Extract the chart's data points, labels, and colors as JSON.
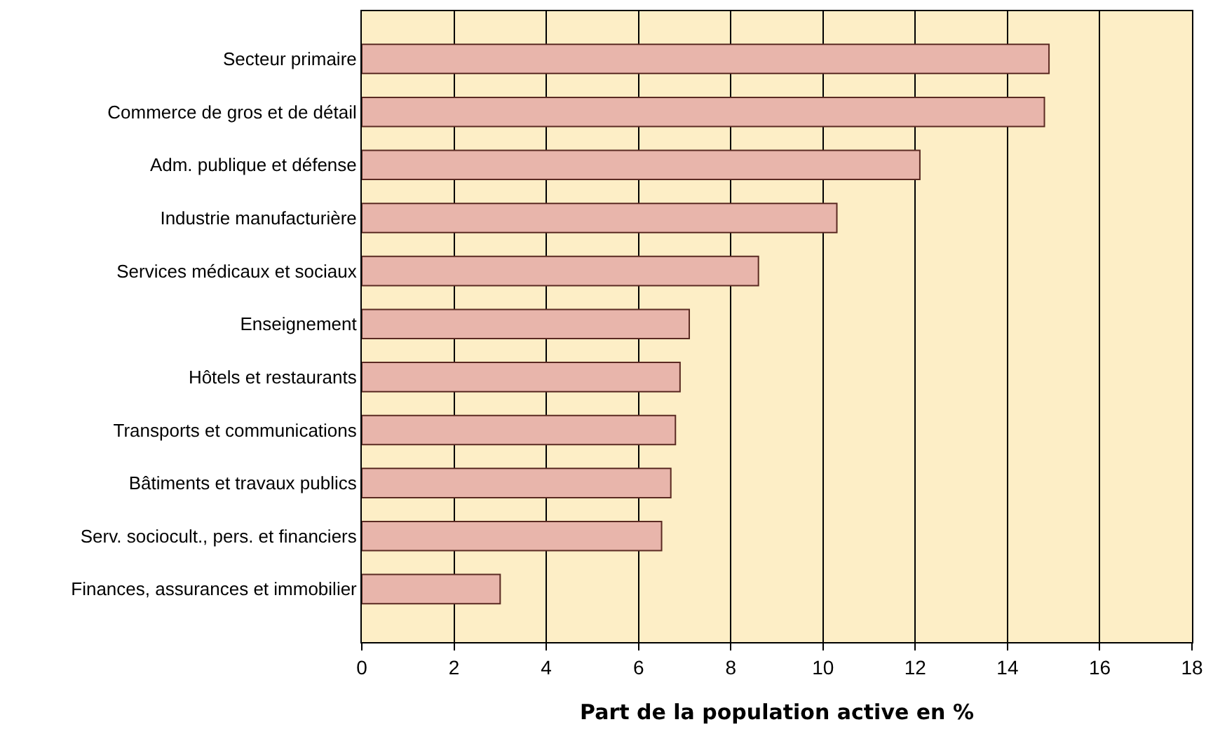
{
  "chart_data": {
    "type": "bar",
    "orientation": "horizontal",
    "xlabel": "Part de la population active en %",
    "categories": [
      "Secteur primaire",
      "Commerce de gros et de détail",
      "Adm. publique et défense",
      "Industrie manufacturière",
      "Services médicaux et sociaux",
      "Enseignement",
      "Hôtels et restaurants",
      "Transports et communications",
      "Bâtiments et travaux publics",
      "Serv. sociocult., pers. et financiers",
      "Finances, assurances et immobilier"
    ],
    "values": [
      14.9,
      14.8,
      12.1,
      10.3,
      8.6,
      7.1,
      6.9,
      6.8,
      6.7,
      6.5,
      3.0
    ],
    "color": "#e8b5ab",
    "xlim": [
      0,
      18
    ],
    "xticks": [
      0,
      2,
      4,
      6,
      8,
      10,
      12,
      14,
      16,
      18
    ],
    "grid": "x"
  }
}
